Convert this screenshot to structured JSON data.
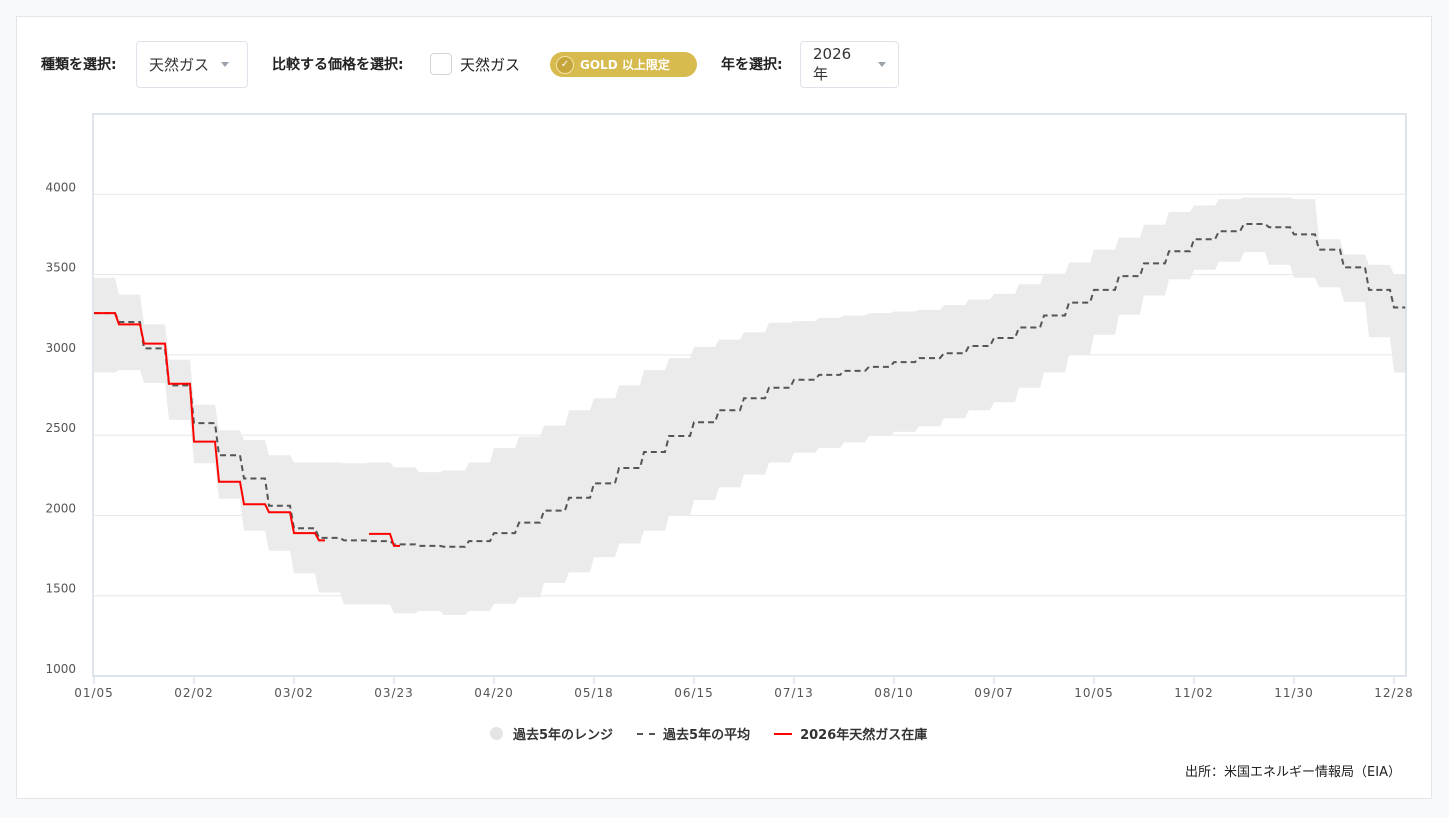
{
  "controls": {
    "type_label": "種類を選択:",
    "type_value": "天然ガス",
    "compare_label": "比較する価格を選択:",
    "compare_option": "天然ガス",
    "compare_checked": false,
    "gold_badge": "GOLD 以上限定",
    "year_label": "年を選択:",
    "year_value": "2026年"
  },
  "colors": {
    "range": "#ebebeb",
    "average": "#555555",
    "current": "#ff0000",
    "gold": "#d8bb4f"
  },
  "chart_data": {
    "type": "line",
    "x_tick_labels": [
      "01/05",
      "02/02",
      "03/02",
      "03/23",
      "04/20",
      "05/18",
      "06/15",
      "07/13",
      "08/10",
      "09/07",
      "10/05",
      "11/02",
      "11/30",
      "12/28"
    ],
    "y_ticks": [
      1000,
      1500,
      2000,
      2500,
      3000,
      3500,
      4000
    ],
    "ylim": [
      1000,
      4500
    ],
    "grid": true,
    "legend_placement": "bottom",
    "series": [
      {
        "name": "過去5年のレンジ",
        "kind": "range",
        "max": [
          3480,
          3375,
          3190,
          2970,
          2690,
          2530,
          2470,
          2375,
          2330,
          2330,
          2325,
          2330,
          2300,
          2270,
          2280,
          2330,
          2420,
          2490,
          2560,
          2655,
          2730,
          2810,
          2905,
          2980,
          3050,
          3095,
          3140,
          3200,
          3210,
          3230,
          3245,
          3260,
          3270,
          3280,
          3310,
          3345,
          3380,
          3440,
          3505,
          3575,
          3655,
          3730,
          3810,
          3890,
          3930,
          3970,
          3980,
          3980,
          3970,
          3720,
          3625,
          3560,
          3500
        ],
        "min": [
          2890,
          2905,
          2825,
          2595,
          2325,
          2105,
          1905,
          1780,
          1640,
          1520,
          1445,
          1445,
          1390,
          1405,
          1380,
          1405,
          1450,
          1490,
          1580,
          1645,
          1740,
          1825,
          1905,
          2000,
          2095,
          2175,
          2255,
          2330,
          2390,
          2420,
          2455,
          2495,
          2520,
          2555,
          2605,
          2655,
          2705,
          2795,
          2890,
          3000,
          3125,
          3250,
          3370,
          3470,
          3530,
          3580,
          3640,
          3560,
          3480,
          3420,
          3330,
          3110,
          2890
        ]
      },
      {
        "name": "過去5年の平均",
        "kind": "average",
        "values": [
          3260,
          3205,
          3040,
          2810,
          2575,
          2375,
          2230,
          2060,
          1920,
          1860,
          1845,
          1840,
          1820,
          1810,
          1805,
          1840,
          1890,
          1955,
          2030,
          2110,
          2200,
          2295,
          2395,
          2495,
          2580,
          2655,
          2730,
          2795,
          2845,
          2875,
          2900,
          2925,
          2955,
          2980,
          3010,
          3055,
          3105,
          3170,
          3245,
          3325,
          3405,
          3490,
          3570,
          3645,
          3720,
          3770,
          3815,
          3795,
          3750,
          3655,
          3545,
          3405,
          3295
        ]
      },
      {
        "name": "2026年天然ガス在庫",
        "kind": "current",
        "values": [
          3260,
          3190,
          3070,
          2820,
          2460,
          2210,
          2070,
          2020,
          1890,
          1845,
          null,
          1885,
          1810
        ]
      }
    ]
  },
  "legend": {
    "range": "過去5年のレンジ",
    "average": "過去5年の平均",
    "current": "2026年天然ガス在庫"
  },
  "source": "出所：米国エネルギー情報局（EIA）"
}
